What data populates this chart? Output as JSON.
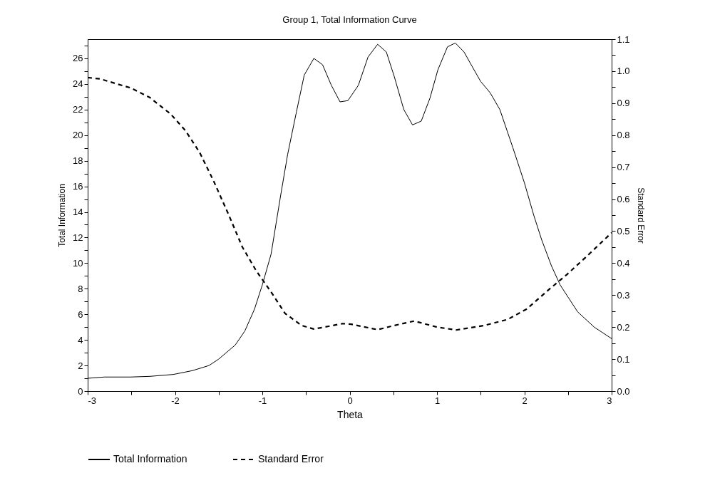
{
  "chart_data": {
    "type": "line",
    "title": "Group 1, Total Information Curve",
    "xlabel": "Theta",
    "ylabel": "Total Information",
    "y2label": "Standard Error",
    "xlim": [
      -3,
      3
    ],
    "xticks": [
      -3,
      {
        "value": -2.5,
        "label": null
      },
      -2,
      {
        "value": -1.5,
        "label": null
      },
      -1,
      {
        "value": -0.5,
        "label": null
      },
      0,
      {
        "value": 0.5,
        "label": null
      },
      1,
      {
        "value": 1.5,
        "label": null
      },
      2,
      {
        "value": 2.5,
        "label": null
      },
      3
    ],
    "ylim": [
      0,
      27.5
    ],
    "yticks": [
      0,
      {
        "value": 1,
        "label": null
      },
      2,
      {
        "value": 3,
        "label": null
      },
      4,
      {
        "value": 5,
        "label": null
      },
      6,
      {
        "value": 7,
        "label": null
      },
      8,
      {
        "value": 9,
        "label": null
      },
      10,
      {
        "value": 11,
        "label": null
      },
      12,
      {
        "value": 13,
        "label": null
      },
      14,
      {
        "value": 15,
        "label": null
      },
      16,
      {
        "value": 17,
        "label": null
      },
      18,
      {
        "value": 19,
        "label": null
      },
      20,
      {
        "value": 21,
        "label": null
      },
      22,
      {
        "value": 23,
        "label": null
      },
      24,
      {
        "value": 25,
        "label": null
      },
      26,
      {
        "value": 27,
        "label": null
      }
    ],
    "y2lim": [
      0,
      1.1
    ],
    "y2ticks": [
      {
        "value": 0,
        "label": "0.0"
      },
      {
        "value": 0.05,
        "label": null
      },
      0.1,
      {
        "value": 0.15,
        "label": null
      },
      0.2,
      {
        "value": 0.25,
        "label": null
      },
      0.3,
      {
        "value": 0.35,
        "label": null
      },
      0.4,
      {
        "value": 0.45,
        "label": null
      },
      0.5,
      {
        "value": 0.55,
        "label": null
      },
      0.6,
      {
        "value": 0.65,
        "label": null
      },
      0.7,
      {
        "value": 0.75,
        "label": null
      },
      0.8,
      {
        "value": 0.85,
        "label": null
      },
      0.9,
      {
        "value": 0.95,
        "label": null
      },
      {
        "value": 1,
        "label": "1.0"
      },
      {
        "value": 1.05,
        "label": null
      },
      1.1
    ],
    "grid": false,
    "legend": "bottom",
    "marker": "none",
    "series": [
      {
        "name": "Total Information",
        "color": "#000000",
        "line_style": "solid",
        "x": [
          -3,
          -2.81,
          -2.51,
          -2.29,
          -2.02,
          -1.8,
          -1.61,
          -1.5,
          -1.31,
          -1.2,
          -1.09,
          -1,
          -0.9,
          -0.79,
          -0.71,
          -0.61,
          -0.52,
          -0.41,
          -0.31,
          -0.21,
          -0.11,
          -0.02,
          0.1,
          0.21,
          0.32,
          0.42,
          0.51,
          0.62,
          0.72,
          0.82,
          0.92,
          1.01,
          1.12,
          1.21,
          1.31,
          1.4,
          1.5,
          1.61,
          1.72,
          1.87,
          2,
          2.11,
          2.2,
          2.31,
          2.41,
          2.61,
          2.8,
          3
        ],
        "values": [
          1,
          1.1,
          1.1,
          1.15,
          1.3,
          1.6,
          2,
          2.5,
          3.6,
          4.7,
          6.4,
          8.3,
          10.7,
          15.3,
          18.5,
          21.8,
          24.7,
          26,
          25.5,
          23.9,
          22.6,
          22.7,
          23.9,
          26.1,
          27.1,
          26.5,
          24.6,
          22,
          20.8,
          21.1,
          22.9,
          25.1,
          26.9,
          27.2,
          26.5,
          25.4,
          24.2,
          23.3,
          22,
          19,
          16.3,
          13.7,
          11.8,
          9.8,
          8.3,
          6.2,
          5,
          4.1
        ]
      },
      {
        "name": "Standard Error",
        "color": "#000000",
        "line_style": "dashed",
        "axis": "y2",
        "x": [
          -3,
          -2.86,
          -2.65,
          -2.51,
          -2.29,
          -2.05,
          -1.88,
          -1.72,
          -1.56,
          -1.39,
          -1.23,
          -1.07,
          -0.9,
          -0.74,
          -0.55,
          -0.41,
          -0.25,
          -0.08,
          0.02,
          0.32,
          0.51,
          0.74,
          1,
          1.22,
          1.54,
          1.81,
          2.03,
          2.28,
          2.49,
          2.71,
          3
        ],
        "values": [
          0.98,
          0.976,
          0.959,
          0.948,
          0.918,
          0.866,
          0.814,
          0.747,
          0.658,
          0.554,
          0.451,
          0.376,
          0.31,
          0.243,
          0.205,
          0.194,
          0.202,
          0.211,
          0.209,
          0.192,
          0.205,
          0.219,
          0.2,
          0.191,
          0.205,
          0.224,
          0.257,
          0.317,
          0.365,
          0.42,
          0.495
        ]
      }
    ]
  }
}
